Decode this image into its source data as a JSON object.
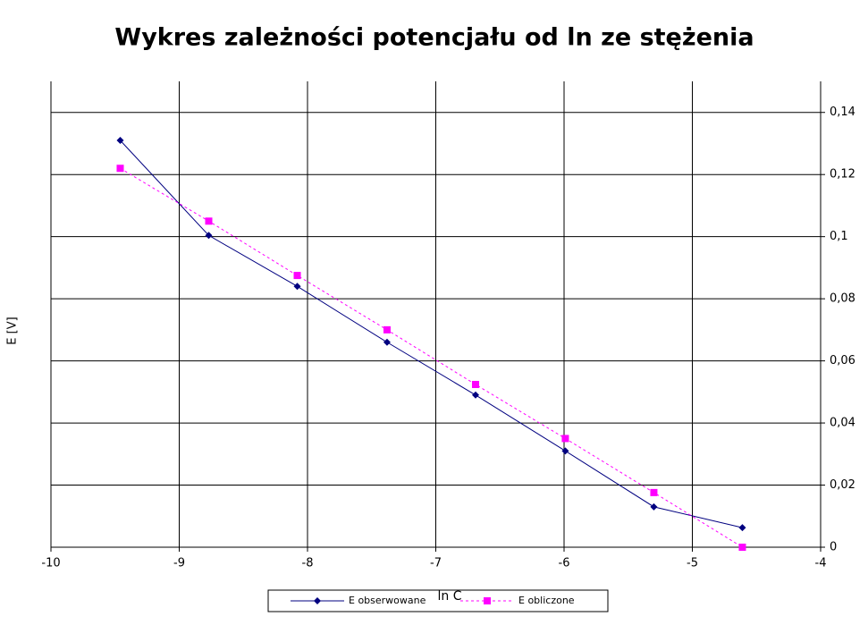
{
  "chart_data": {
    "type": "line",
    "title": "Wykres zależności potencjału od ln ze stężenia",
    "x_label": "ln C",
    "y_label": "E [V]",
    "x": [
      -9.46,
      -8.77,
      -8.08,
      -7.38,
      -6.69,
      -5.99,
      -5.3,
      -4.61
    ],
    "series": [
      {
        "name": "E obserwowane",
        "color": "#000080",
        "marker": "diamond",
        "dashed": false,
        "values": [
          0.131,
          0.1004,
          0.084,
          0.066,
          0.049,
          0.031,
          0.013,
          0.0063
        ]
      },
      {
        "name": "E obliczone",
        "color": "#ff00ff",
        "marker": "square",
        "dashed": true,
        "values": [
          0.122,
          0.105,
          0.0875,
          0.07,
          0.0524,
          0.035,
          0.0176,
          0
        ]
      }
    ],
    "xlim": [
      -10,
      -4
    ],
    "xticks": [
      -10,
      -9,
      -8,
      -7,
      -6,
      -5,
      -4
    ],
    "ylim": [
      0,
      0.15
    ],
    "yticks": [
      0,
      {
        "value": 0.02,
        "label": "0,02"
      },
      {
        "value": 0.04,
        "label": "0,04"
      },
      {
        "value": 0.06,
        "label": "0,06"
      },
      {
        "value": 0.08,
        "label": "0,08"
      },
      {
        "value": 0.1,
        "label": "0,1"
      },
      {
        "value": 0.12,
        "label": "0,12"
      },
      {
        "value": 0.14,
        "label": "0,14"
      }
    ],
    "grid": true,
    "y_axis_side": "right",
    "legend": "bottom"
  }
}
